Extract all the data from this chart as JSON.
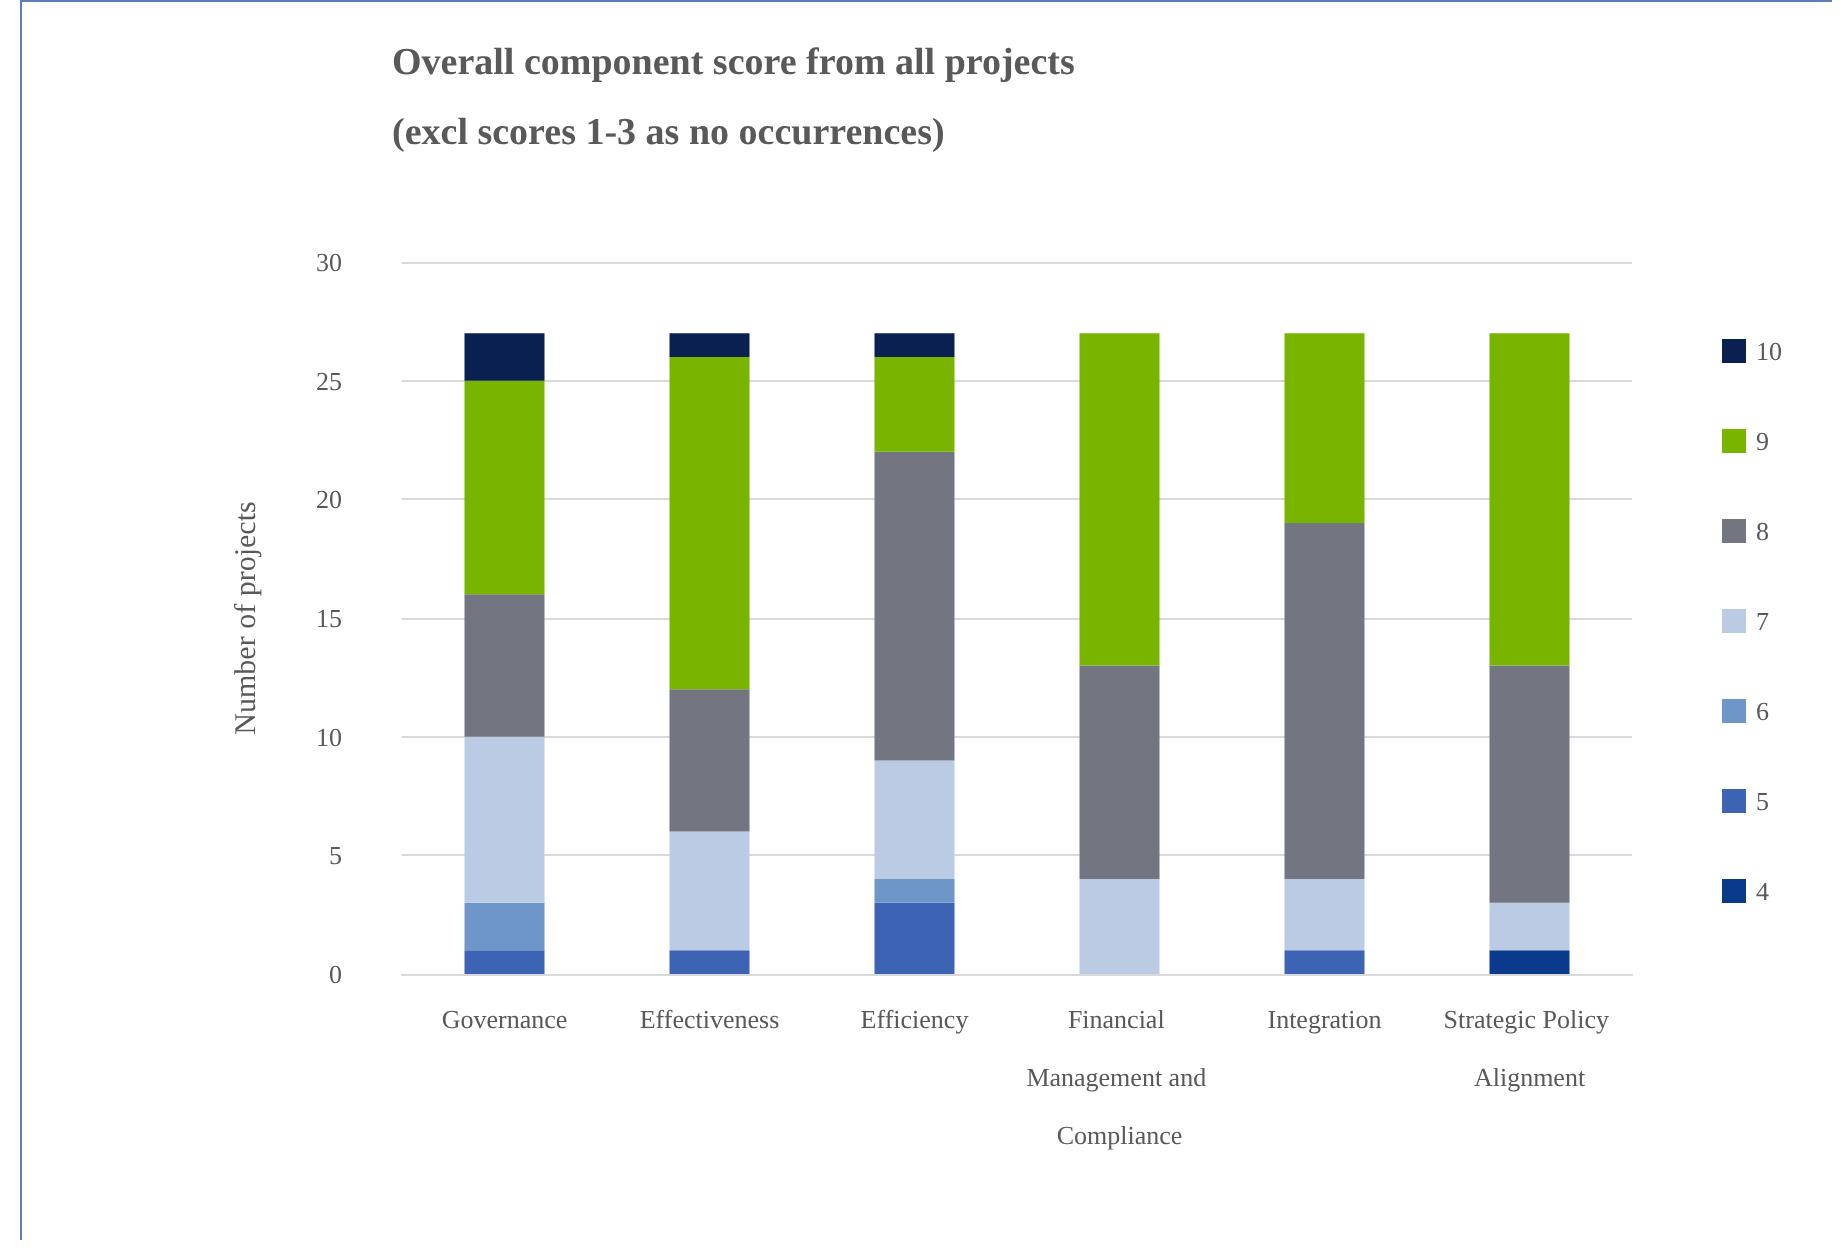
{
  "chart_data": {
    "type": "bar",
    "title": "Overall component score from all projects",
    "subtitle": "(excl scores 1-3 as no occurrences)",
    "ylabel": "Number of projects",
    "categories": [
      "Governance",
      "Effectiveness",
      "Efficiency",
      "Financial Management and Compliance",
      "Integration",
      "Strategic Policy Alignment"
    ],
    "stacked": true,
    "series": [
      {
        "name": "4",
        "color": "#0a3a8c",
        "values": [
          0,
          0,
          0,
          0,
          0,
          1
        ]
      },
      {
        "name": "5",
        "color": "#3d63b4",
        "values": [
          1,
          1,
          3,
          0,
          1,
          0
        ]
      },
      {
        "name": "6",
        "color": "#6f96c8",
        "values": [
          2,
          0,
          1,
          0,
          0,
          0
        ]
      },
      {
        "name": "7",
        "color": "#bccbe4",
        "values": [
          7,
          5,
          5,
          4,
          3,
          2
        ]
      },
      {
        "name": "8",
        "color": "#737680",
        "values": [
          6,
          6,
          13,
          9,
          15,
          10
        ]
      },
      {
        "name": "9",
        "color": "#78b400",
        "values": [
          9,
          14,
          4,
          14,
          8,
          14
        ]
      },
      {
        "name": "10",
        "color": "#0a2050",
        "values": [
          2,
          1,
          1,
          0,
          0,
          0
        ]
      }
    ],
    "ylim": [
      0,
      30
    ],
    "yticks": [
      0,
      5,
      10,
      15,
      20,
      25,
      30
    ],
    "grid": "y",
    "legend": "right"
  }
}
